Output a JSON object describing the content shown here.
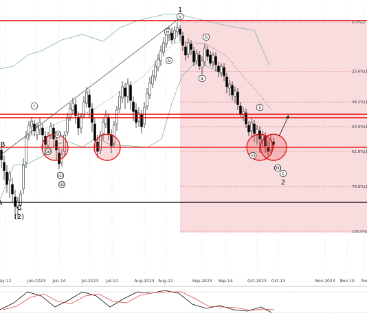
{
  "chart_data": {
    "type": "candlestick",
    "x_ticks": [
      "ay-12",
      "Jun-2023",
      "Jun-14",
      "Jul-2023",
      "Jul-14",
      "Aug-2023",
      "Aug-12",
      "Sep-2023",
      "Sep-14",
      "Oct-2023",
      "Oct-13",
      "Nov-2023",
      "Nov-10",
      "No"
    ],
    "fib_levels": [
      {
        "label": "0.0%(1",
        "value": 0.0
      },
      {
        "label": "23.6%(1",
        "value": 23.6
      },
      {
        "label": "38.2%(1",
        "value": 38.2
      },
      {
        "label": "50.0%(1",
        "value": 50.0
      },
      {
        "label": "61.8%(1",
        "value": 61.8
      },
      {
        "label": "78.6%(1",
        "value": 78.6
      },
      {
        "label": "100.0%(1",
        "value": 100.0
      }
    ],
    "wave_labels": [
      "1",
      "2",
      "B",
      "C",
      "(2)",
      "A"
    ],
    "circled_labels": [
      "i",
      "ii",
      "iii",
      "iv",
      "v",
      "a",
      "b",
      "c",
      "(a)",
      "(b)",
      "(c)",
      "(i)",
      "(ii)",
      "(iii)"
    ],
    "indicator": "stochastic",
    "colors": {
      "support": "#e60000",
      "fib_zone": "#f7d6d8",
      "bollinger": "#7fb3a1",
      "candle": "#000000",
      "stoch_fast": "#000000",
      "stoch_slow": "#d94a4a"
    }
  }
}
